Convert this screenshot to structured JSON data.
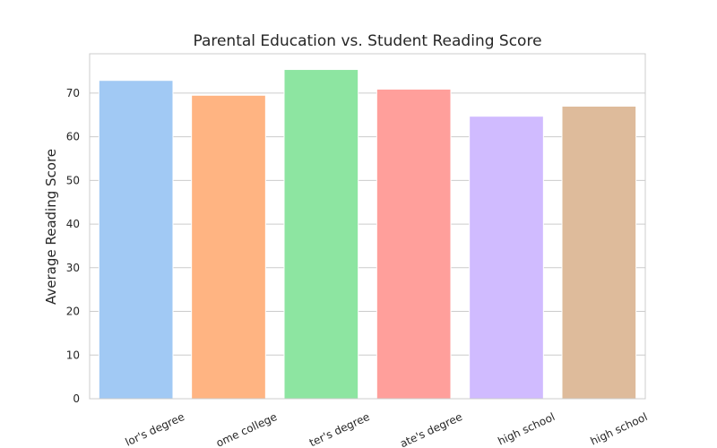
{
  "chart_data": {
    "type": "bar",
    "title": "Parental Education vs. Student Reading Score",
    "xlabel": "",
    "ylabel": "Average Reading Score",
    "categories": [
      "bachelor's degree",
      "some college",
      "master's degree",
      "associate's degree",
      "high school",
      "some high school"
    ],
    "visible_tick_labels": [
      "lor's degree",
      "ome college",
      "ter's degree",
      "ate's degree",
      "high school",
      "high school"
    ],
    "values": [
      72.9,
      69.5,
      75.4,
      70.9,
      64.7,
      67.0
    ],
    "colors": [
      "#a1c9f4",
      "#ffb482",
      "#8de5a1",
      "#ff9f9b",
      "#d0bbff",
      "#debb9b"
    ],
    "ylim": [
      0,
      79
    ],
    "yticks": [
      0,
      10,
      20,
      30,
      40,
      50,
      60,
      70
    ],
    "grid": "horizontal"
  }
}
